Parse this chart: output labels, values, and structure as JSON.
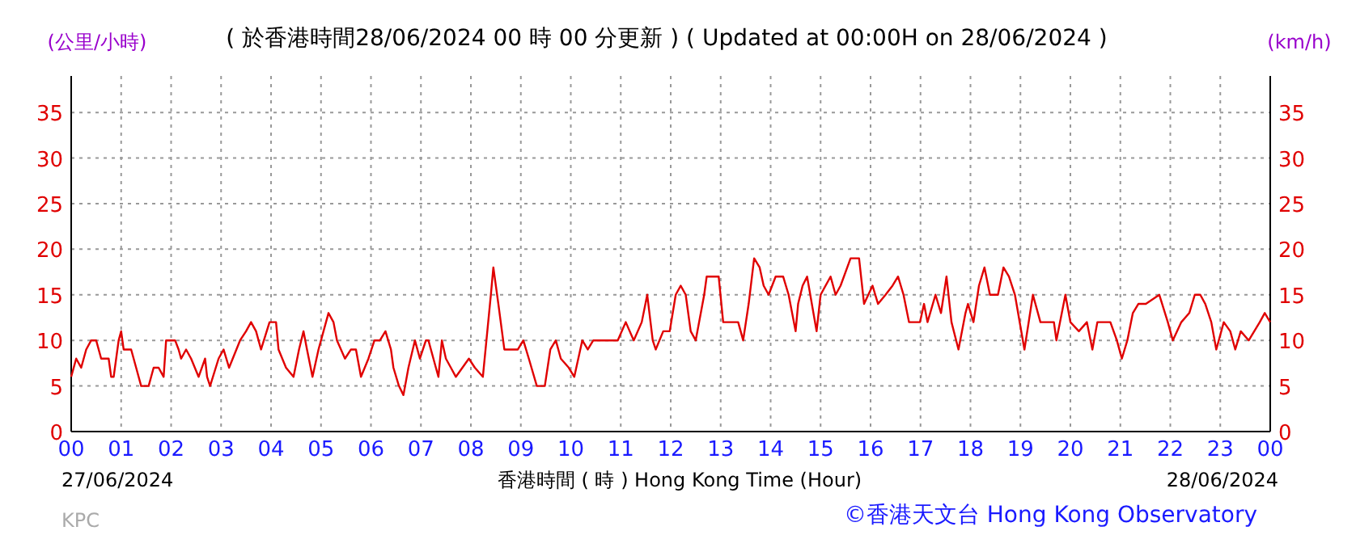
{
  "chart_data": {
    "type": "line",
    "title": "( 於香港時間28/06/2024 00 時 00 分更新 ) ( Updated at 00:00H on 28/06/2024 )",
    "xlabel": "香港時間 ( 時 )  Hong Kong Time (Hour)",
    "ylabel": "(公里/小時)",
    "y2label": "(km/h)",
    "annotations": [
      "27/06/2024",
      "28/06/2024",
      "KPC",
      "©香港天文台 Hong Kong Observatory"
    ],
    "xlim": [
      0,
      24
    ],
    "xticks": [
      {
        "value": 0,
        "label": "00"
      },
      {
        "value": 1,
        "label": "01"
      },
      {
        "value": 2,
        "label": "02"
      },
      {
        "value": 3,
        "label": "03"
      },
      {
        "value": 4,
        "label": "04"
      },
      {
        "value": 5,
        "label": "05"
      },
      {
        "value": 6,
        "label": "06"
      },
      {
        "value": 7,
        "label": "07"
      },
      {
        "value": 8,
        "label": "08"
      },
      {
        "value": 9,
        "label": "09"
      },
      10,
      11,
      12,
      13,
      14,
      15,
      16,
      17,
      18,
      19,
      20,
      21,
      22,
      23,
      {
        "value": 24,
        "label": "00"
      }
    ],
    "ylim": [
      0,
      39
    ],
    "yticks": [
      0,
      5,
      10,
      15,
      20,
      25,
      30,
      35
    ],
    "y2lim": [
      0,
      39
    ],
    "y2ticks": [
      0,
      5,
      10,
      15,
      20,
      25,
      30,
      35
    ],
    "grid": true,
    "marker": "none",
    "line_style": "solid",
    "series": [
      {
        "color": "#e00000",
        "x": [
          0,
          0.1,
          0.2,
          0.3,
          0.4,
          0.5,
          0.6,
          0.75,
          0.8,
          0.85,
          0.95,
          1.0,
          1.05,
          1.2,
          1.3,
          1.4,
          1.55,
          1.65,
          1.75,
          1.85,
          1.9,
          2.08,
          2.15,
          2.2,
          2.3,
          2.4,
          2.55,
          2.68,
          2.72,
          2.78,
          2.95,
          3.05,
          3.16,
          3.38,
          3.5,
          3.6,
          3.7,
          3.8,
          3.97,
          4.1,
          4.15,
          4.3,
          4.45,
          4.56,
          4.65,
          4.72,
          4.83,
          4.95,
          5.1,
          5.15,
          5.25,
          5.32,
          5.4,
          5.48,
          5.6,
          5.7,
          5.8,
          5.95,
          6.07,
          6.18,
          6.29,
          6.4,
          6.45,
          6.56,
          6.65,
          6.75,
          6.88,
          6.98,
          7.1,
          7.15,
          7.25,
          7.35,
          7.42,
          7.5,
          7.6,
          7.7,
          7.96,
          8.08,
          8.24,
          8.4,
          8.45,
          8.55,
          8.67,
          8.94,
          9.05,
          9.16,
          9.32,
          9.48,
          9.59,
          9.7,
          9.8,
          9.96,
          10.07,
          10.23,
          10.34,
          10.45,
          10.7,
          10.94,
          11.1,
          11.26,
          11.42,
          11.53,
          11.64,
          11.7,
          11.85,
          11.98,
          12.1,
          12.2,
          12.3,
          12.4,
          12.5,
          12.67,
          12.72,
          12.96,
          13.05,
          13.35,
          13.45,
          13.56,
          13.67,
          13.78,
          13.86,
          13.96,
          14.1,
          14.25,
          14.36,
          14.5,
          14.55,
          14.64,
          14.73,
          14.92,
          15.0,
          15.2,
          15.3,
          15.4,
          15.6,
          15.77,
          15.87,
          16.04,
          16.15,
          16.3,
          16.44,
          16.55,
          16.66,
          16.77,
          16.99,
          17.07,
          17.14,
          17.3,
          17.41,
          17.52,
          17.62,
          17.76,
          17.9,
          17.95,
          18.06,
          18.17,
          18.28,
          18.39,
          18.55,
          18.66,
          18.77,
          18.89,
          19.08,
          19.25,
          19.35,
          19.4,
          19.67,
          19.72,
          19.9,
          20.0,
          20.17,
          20.33,
          20.44,
          20.54,
          20.8,
          20.93,
          21.03,
          21.14,
          21.25,
          21.36,
          21.51,
          21.78,
          21.95,
          22.05,
          22.22,
          22.38,
          22.49,
          22.6,
          22.7,
          22.82,
          22.92,
          23.07,
          23.2,
          23.3,
          23.41,
          23.57,
          23.68,
          23.79,
          23.89,
          24.0
        ],
        "values": [
          6,
          8,
          7,
          9,
          10,
          10,
          8,
          8,
          6,
          6,
          10,
          11,
          9,
          9,
          7,
          5,
          5,
          7,
          7,
          6,
          10,
          10,
          9,
          8,
          9,
          8,
          6,
          8,
          6,
          5,
          8,
          9,
          7,
          10,
          11,
          12,
          11,
          9,
          12,
          12,
          9,
          7,
          6,
          9,
          11,
          9,
          6,
          9,
          12,
          13,
          12,
          10,
          9,
          8,
          9,
          9,
          6,
          8,
          10,
          10,
          11,
          9,
          7,
          5,
          4,
          7,
          10,
          8,
          10,
          10,
          8,
          6,
          10,
          8,
          7,
          6,
          8,
          7,
          6,
          15,
          18,
          14,
          9,
          9,
          10,
          8,
          5,
          5,
          9,
          10,
          8,
          7,
          6,
          10,
          9,
          10,
          10,
          10,
          12,
          10,
          12,
          15,
          10,
          9,
          11,
          11,
          15,
          16,
          15,
          11,
          10,
          15,
          17,
          17,
          12,
          12,
          10,
          14,
          19,
          18,
          16,
          15,
          17,
          17,
          15,
          11,
          14,
          16,
          17,
          11,
          15,
          17,
          15,
          16,
          19,
          19,
          14,
          16,
          14,
          15,
          16,
          17,
          15,
          12,
          12,
          14,
          12,
          15,
          13,
          17,
          12,
          9,
          13,
          14,
          12,
          16,
          18,
          15,
          15,
          18,
          17,
          15,
          9,
          15,
          13,
          12,
          12,
          10,
          15,
          12,
          11,
          12,
          9,
          12,
          12,
          10,
          8,
          10,
          13,
          14,
          14,
          15,
          12,
          10,
          12,
          13,
          15,
          15,
          14,
          12,
          9,
          12,
          11,
          9,
          11,
          10,
          11,
          12,
          13,
          12
        ]
      }
    ]
  }
}
